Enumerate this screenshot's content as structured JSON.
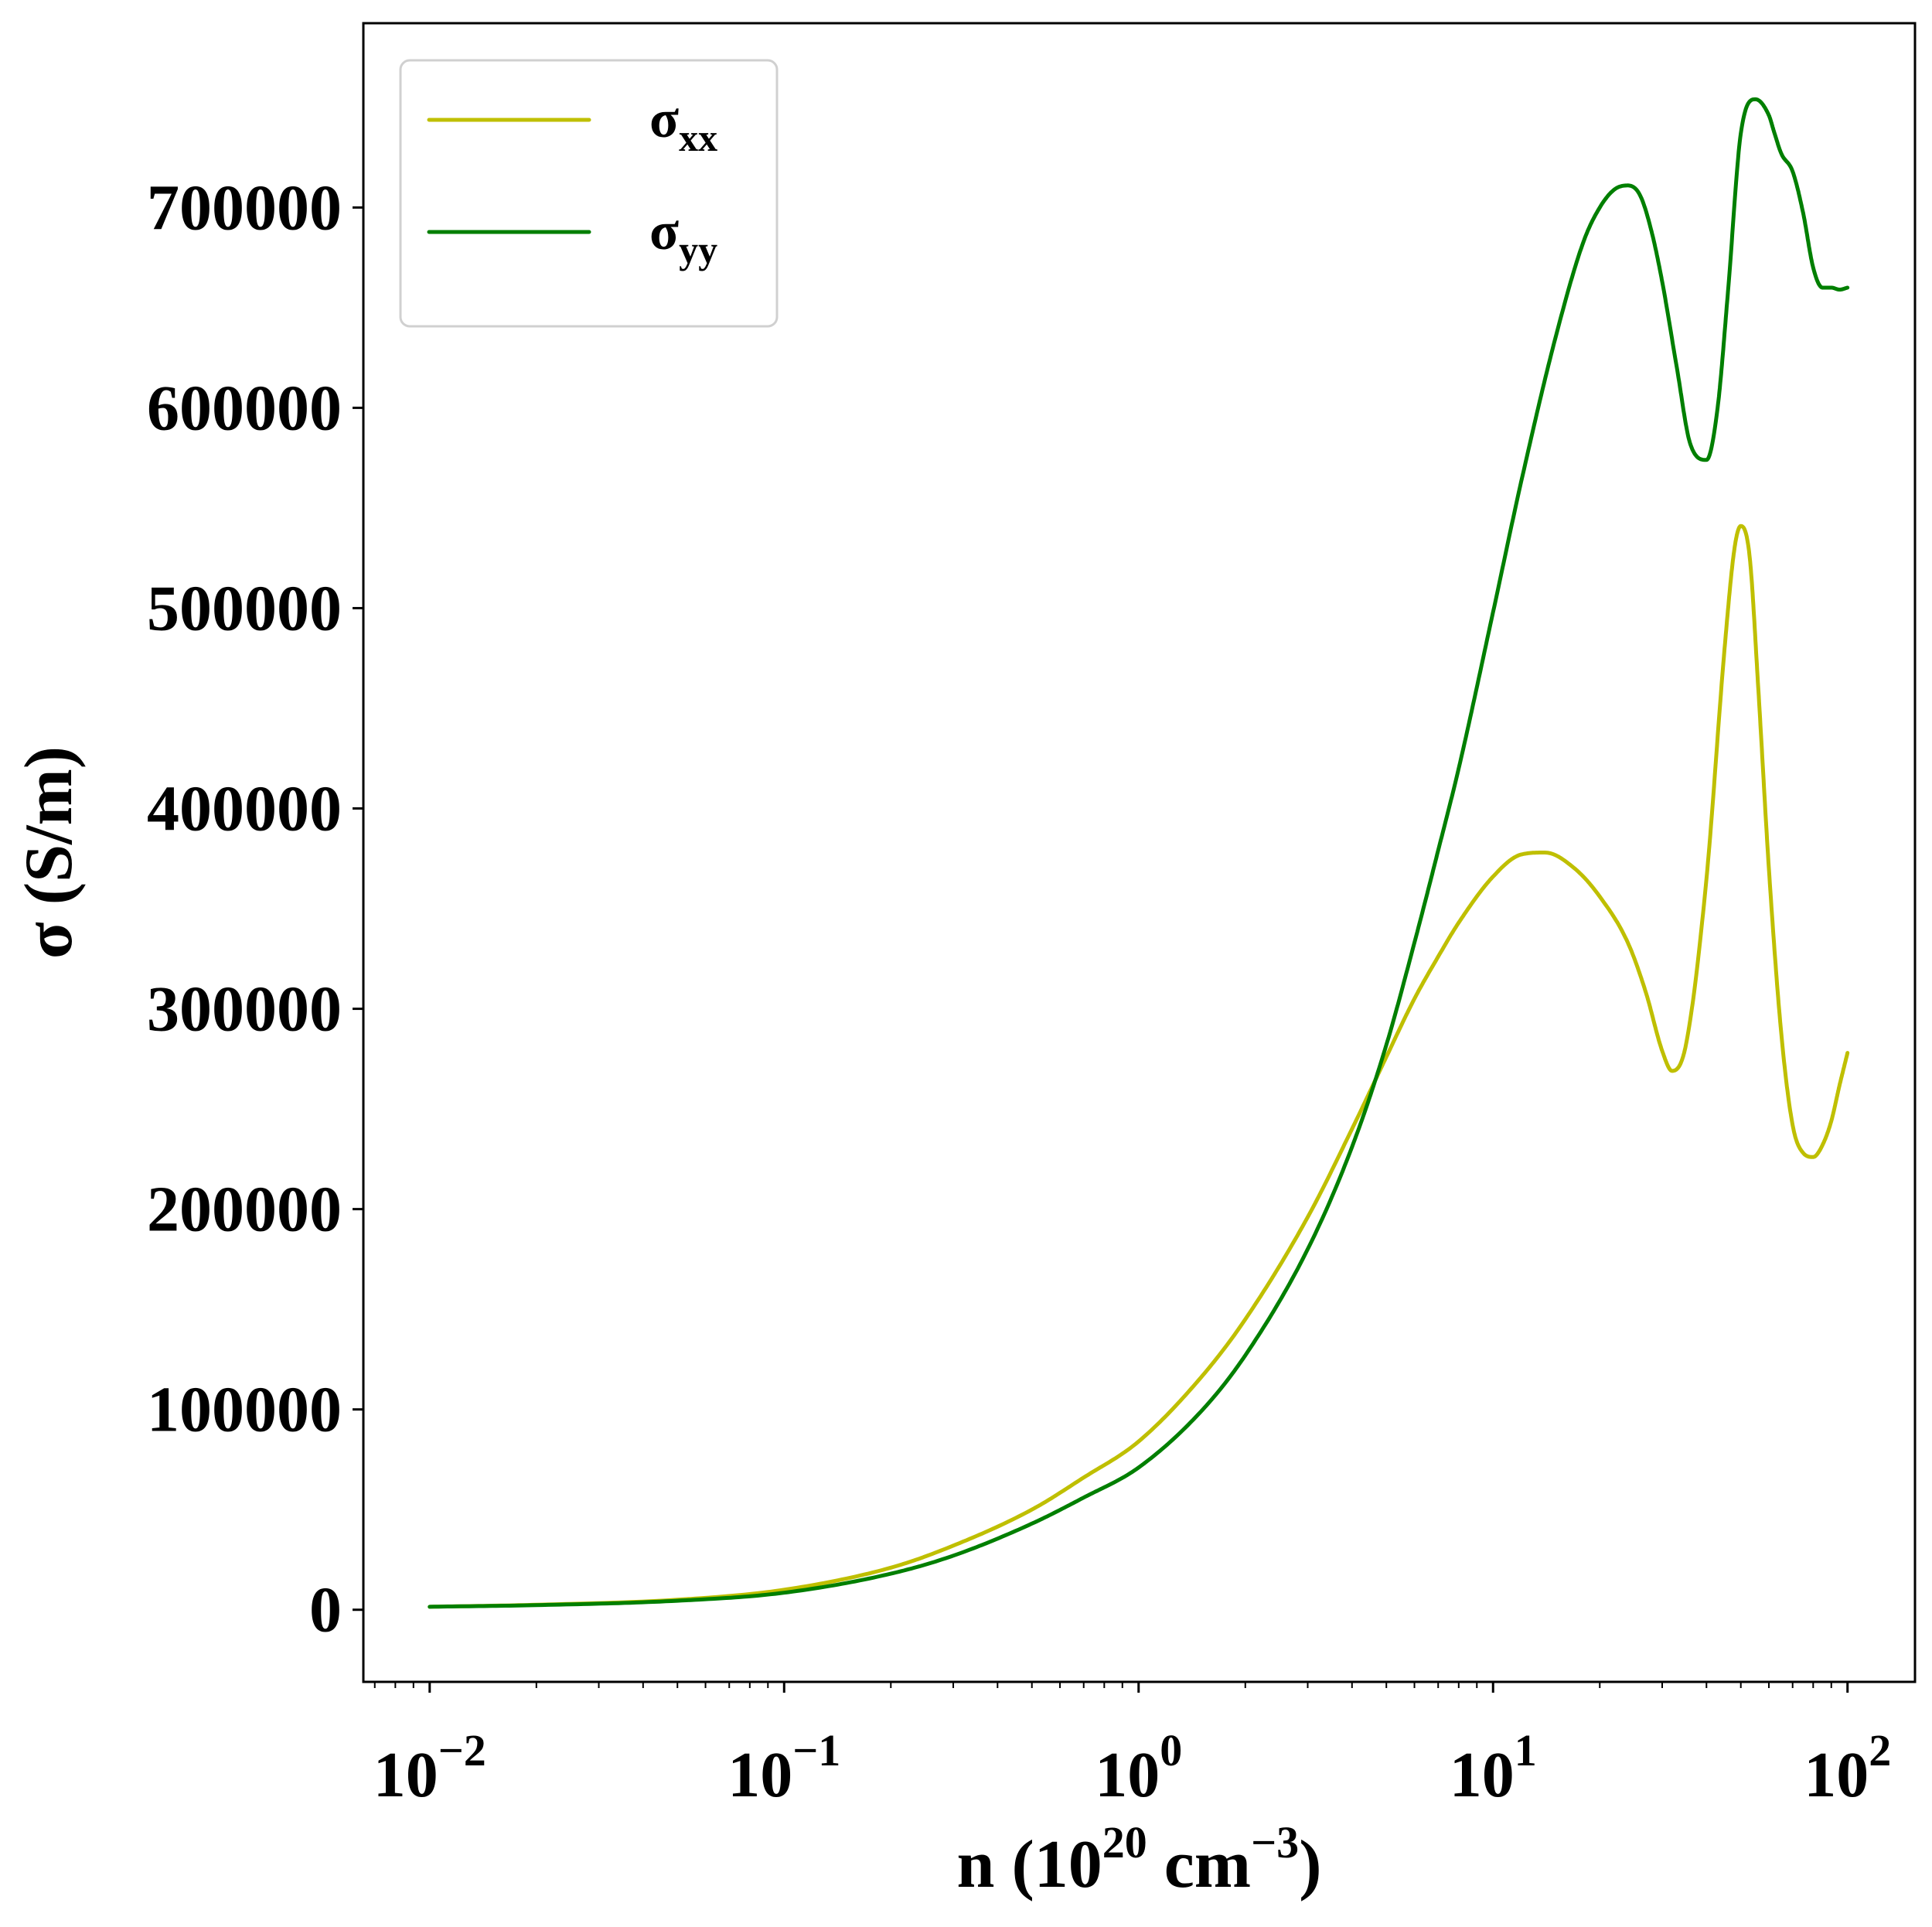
{
  "chart_data": {
    "type": "line",
    "xlabel": {
      "main": "n (10",
      "exp1": "20",
      "mid": " cm",
      "exp2": "−3",
      "end": ")"
    },
    "ylabel": "σ (S/m)",
    "xscale": "log",
    "xlim": [
      0.0065,
      155
    ],
    "ylim": [
      -36000,
      792000
    ],
    "xticks": [
      {
        "value": 0.01,
        "base": "10",
        "exp": "−2"
      },
      {
        "value": 0.1,
        "base": "10",
        "exp": "−1"
      },
      {
        "value": 1,
        "base": "10",
        "exp": "0"
      },
      {
        "value": 10,
        "base": "10",
        "exp": "1"
      },
      {
        "value": 100,
        "base": "10",
        "exp": "2"
      }
    ],
    "yticks": [
      {
        "value": 0,
        "label": "0"
      },
      {
        "value": 100000,
        "label": "100000"
      },
      {
        "value": 200000,
        "label": "200000"
      },
      {
        "value": 300000,
        "label": "300000"
      },
      {
        "value": 400000,
        "label": "400000"
      },
      {
        "value": 500000,
        "label": "500000"
      },
      {
        "value": 600000,
        "label": "600000"
      },
      {
        "value": 700000,
        "label": "700000"
      }
    ],
    "grid": false,
    "legend_position": "top-left",
    "series": [
      {
        "name": "σxx",
        "legend_base": "σ",
        "legend_sub": "xx",
        "color": "#bfbf00",
        "x": [
          0.01,
          0.02,
          0.05,
          0.1,
          0.2,
          0.3,
          0.5,
          0.7,
          1.0,
          1.5,
          2.0,
          3.0,
          4.0,
          5.0,
          6.0,
          7.0,
          8.0,
          10.0,
          12.0,
          14.0,
          17.0,
          20.0,
          24.0,
          27.0,
          30.0,
          32.0,
          35.0,
          40.0,
          45.0,
          48.0,
          50.0,
          53.0,
          56.0,
          60.0,
          65.0,
          70.0,
          75.0,
          80.0,
          85.0,
          90.0,
          95.0,
          100.0
        ],
        "y": [
          1500,
          2500,
          5000,
          10000,
          21000,
          32000,
          50000,
          66000,
          84000,
          116000,
          145000,
          196000,
          240000,
          276000,
          305000,
          326000,
          343000,
          366000,
          377000,
          378000,
          370000,
          356000,
          333000,
          308000,
          279000,
          269000,
          282000,
          365000,
          480000,
          530000,
          541000,
          525000,
          460000,
          370000,
          288000,
          242000,
          228000,
          226000,
          232000,
          244000,
          262000,
          278000
        ]
      },
      {
        "name": "σyy",
        "legend_base": "σ",
        "legend_sub": "yy",
        "color": "#007f00",
        "x": [
          0.01,
          0.02,
          0.05,
          0.1,
          0.2,
          0.3,
          0.5,
          0.7,
          1.0,
          1.5,
          2.0,
          3.0,
          4.0,
          5.0,
          6.0,
          7.0,
          8.0,
          10.0,
          12.0,
          15.0,
          18.0,
          20.0,
          22.0,
          24.0,
          26.0,
          28.0,
          30.0,
          33.0,
          36.0,
          40.0,
          43.0,
          46.0,
          50.0,
          55.0,
          60.0,
          62.0,
          65.0,
          70.0,
          75.0,
          80.0,
          85.0,
          90.0,
          95.0,
          100.0
        ],
        "y": [
          1500,
          2300,
          4500,
          8500,
          18000,
          27000,
          43000,
          56000,
          71000,
          99000,
          127000,
          180000,
          231000,
          282000,
          333000,
          379000,
          420000,
          498000,
          563000,
          635000,
          683000,
          700000,
          709000,
          711000,
          706000,
          688000,
          663000,
          620000,
          582000,
          574000,
          600000,
          658000,
          737000,
          754000,
          746000,
          738000,
          727000,
          718000,
          697000,
          670000,
          660000,
          660000,
          659000,
          660000
        ]
      }
    ]
  }
}
